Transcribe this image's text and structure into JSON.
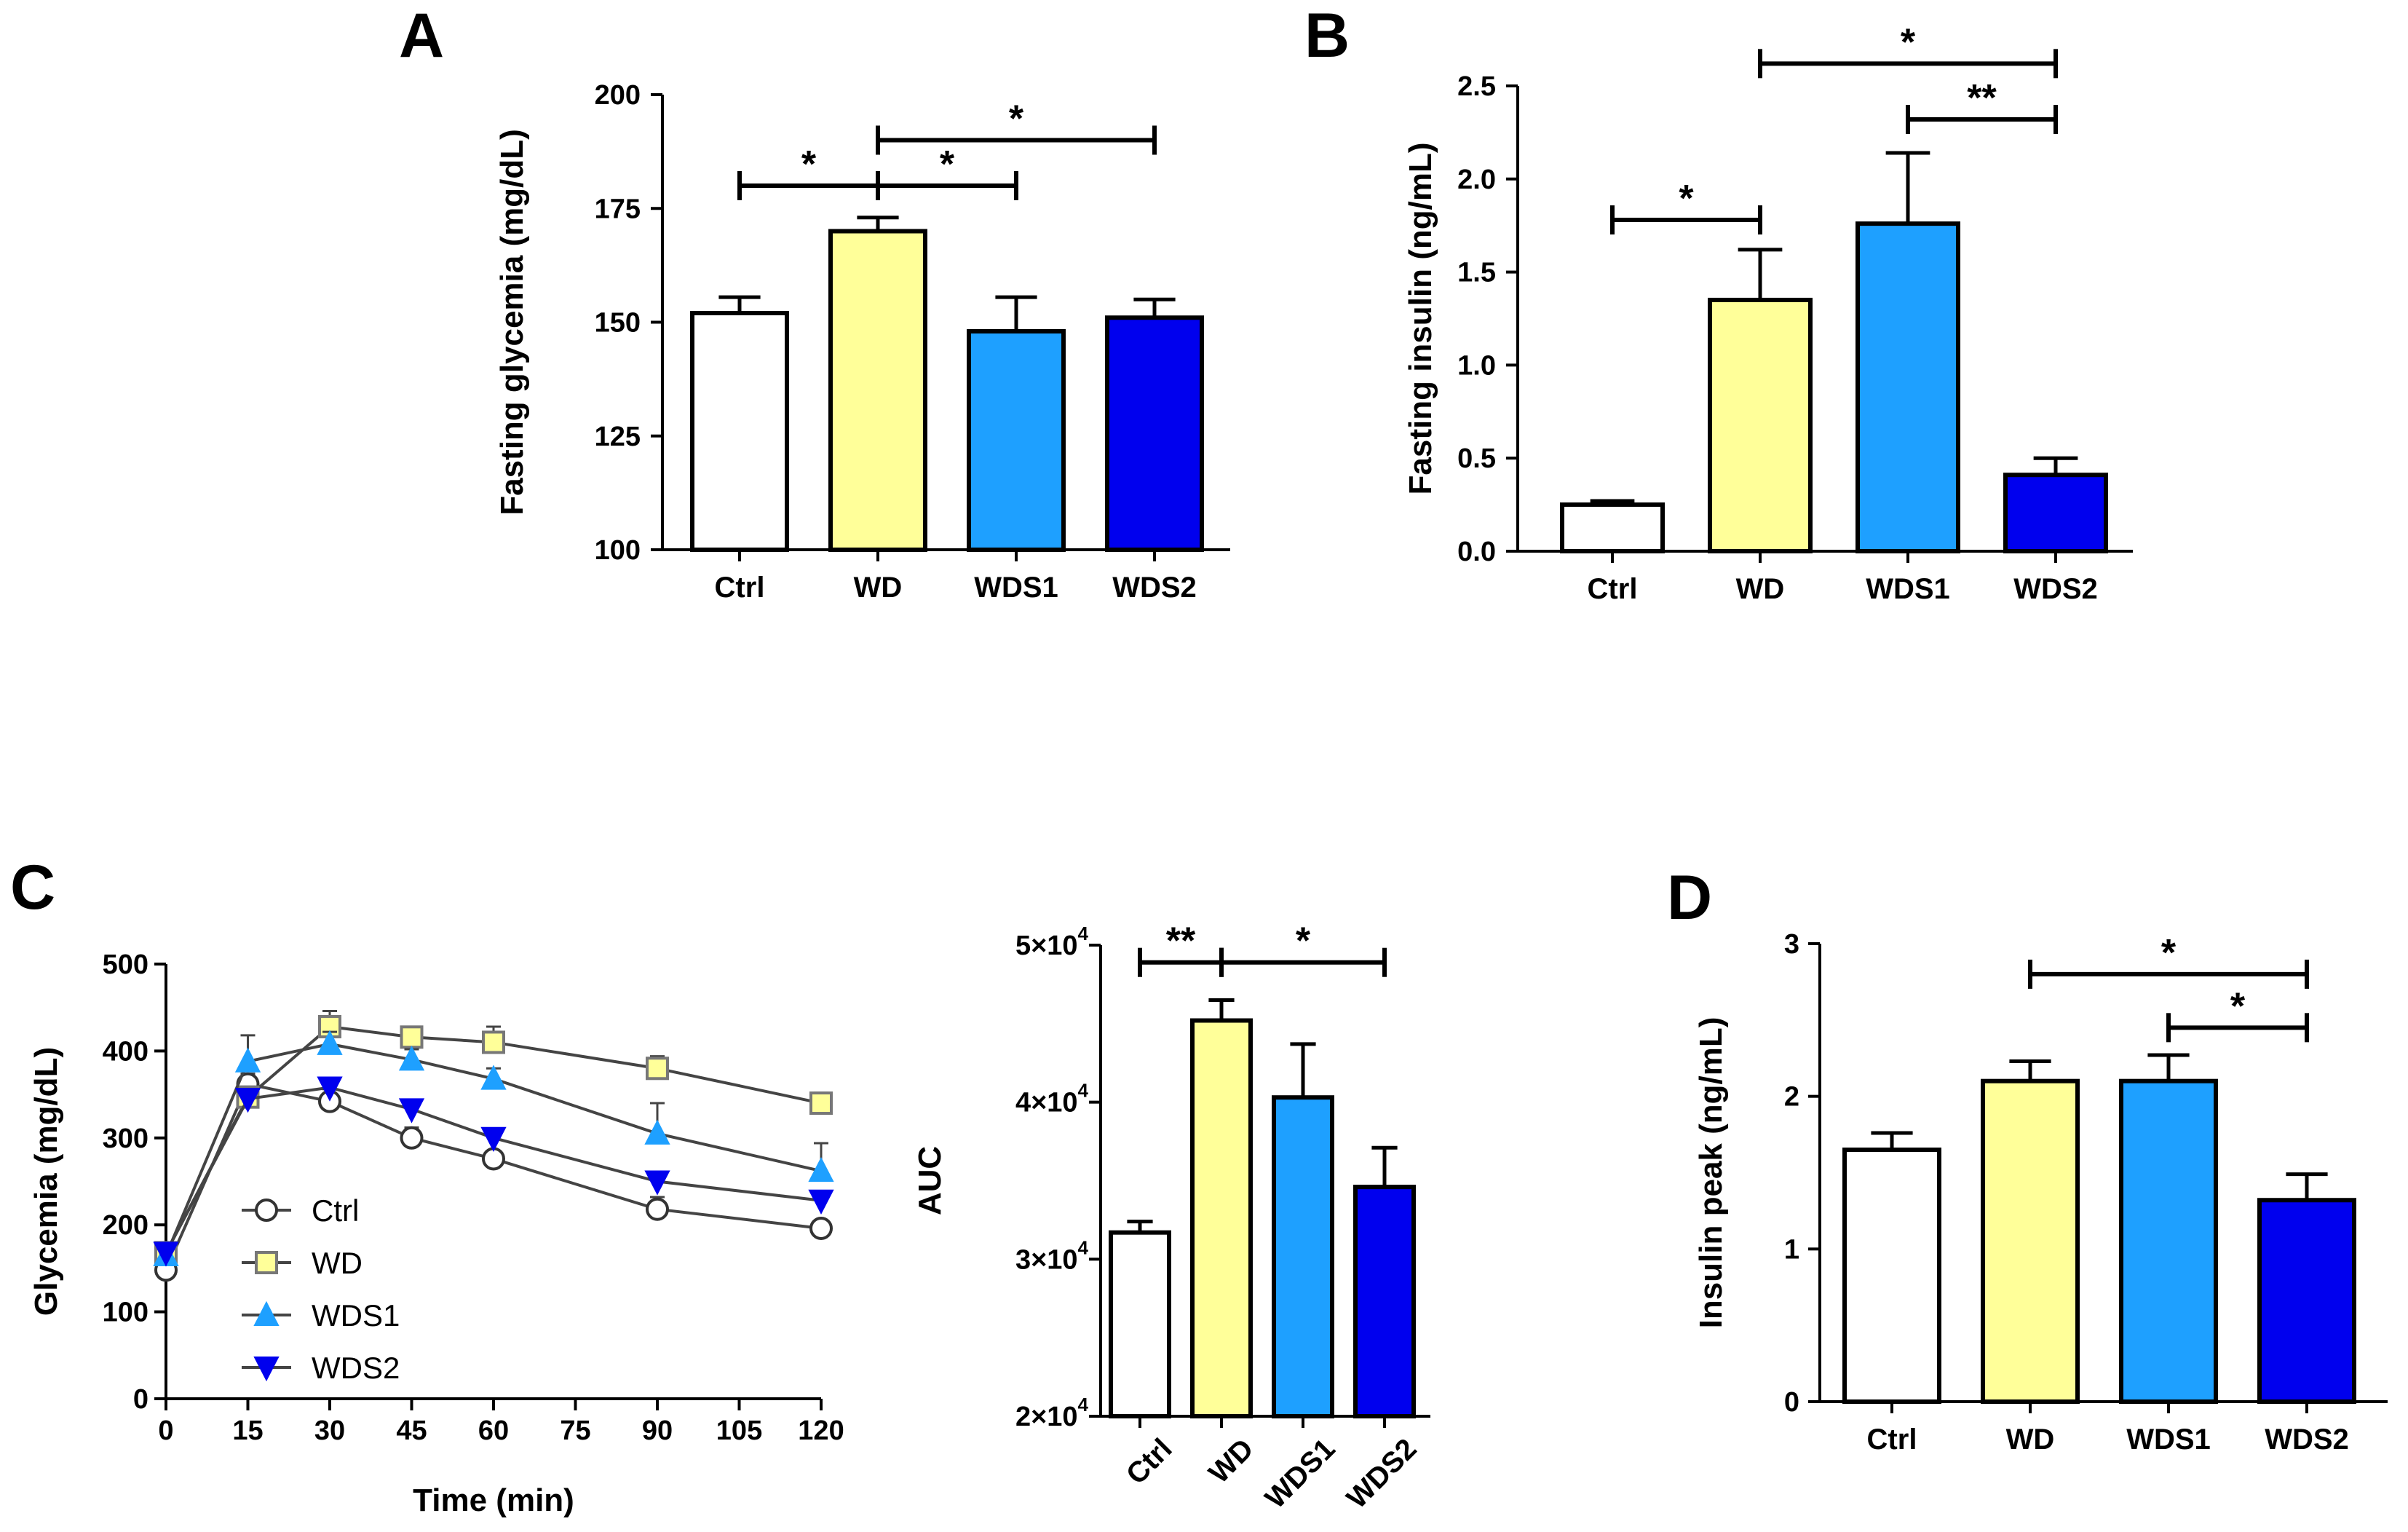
{
  "chart_data": [
    {
      "id": "A",
      "type": "bar",
      "panel_label": "A",
      "title": "",
      "ylabel": "Fasting glycemia (mg/dL)",
      "xlabel": "",
      "ylim": [
        100,
        200
      ],
      "yticks": [
        100,
        125,
        150,
        175,
        200
      ],
      "ytick_labels": [
        "100",
        "125",
        "150",
        "175",
        "200"
      ],
      "categories": [
        "Ctrl",
        "WD",
        "WDS1",
        "WDS2"
      ],
      "values": [
        152,
        170,
        148,
        151
      ],
      "errors": [
        3.5,
        3,
        7.5,
        4
      ],
      "colors": [
        "#ffffff",
        "#ffff99",
        "#1ea0ff",
        "#0000ee"
      ],
      "significance": [
        {
          "from": 0,
          "to": 1,
          "label": "*",
          "y": 180
        },
        {
          "from": 1,
          "to": 2,
          "label": "*",
          "y": 180
        },
        {
          "from": 1,
          "to": 3,
          "label": "*",
          "y": 190
        }
      ]
    },
    {
      "id": "B",
      "type": "bar",
      "panel_label": "B",
      "title": "",
      "ylabel": "Fasting insulin (ng/mL)",
      "xlabel": "",
      "ylim": [
        0,
        2.5
      ],
      "yticks": [
        0,
        0.5,
        1.0,
        1.5,
        2.0,
        2.5
      ],
      "ytick_labels": [
        "0.0",
        "0.5",
        "1.0",
        "1.5",
        "2.0",
        "2.5"
      ],
      "categories": [
        "Ctrl",
        "WD",
        "WDS1",
        "WDS2"
      ],
      "values": [
        0.25,
        1.35,
        1.76,
        0.41
      ],
      "errors": [
        0.02,
        0.27,
        0.38,
        0.09
      ],
      "colors": [
        "#ffffff",
        "#ffff99",
        "#1ea0ff",
        "#0000ee"
      ],
      "significance": [
        {
          "from": 0,
          "to": 1,
          "label": "*",
          "y": 1.78
        },
        {
          "from": 2,
          "to": 3,
          "label": "**",
          "y": 2.32
        },
        {
          "from": 1,
          "to": 3,
          "label": "*",
          "y": 2.62
        }
      ]
    },
    {
      "id": "C-line",
      "type": "line",
      "panel_label": "C",
      "title": "",
      "ylabel": "Glycemia (mg/dL)",
      "xlabel": "Time (min)",
      "xlim": [
        0,
        120
      ],
      "ylim": [
        0,
        500
      ],
      "xticks": [
        0,
        15,
        30,
        45,
        60,
        75,
        90,
        105,
        120
      ],
      "xtick_labels": [
        "0",
        "15",
        "30",
        "45",
        "60",
        "75",
        "90",
        "105",
        "120"
      ],
      "yticks": [
        0,
        100,
        200,
        300,
        400,
        500
      ],
      "ytick_labels": [
        "0",
        "100",
        "200",
        "300",
        "400",
        "500"
      ],
      "x": [
        0,
        15,
        30,
        45,
        60,
        90,
        120
      ],
      "legend_position": "lower-left",
      "series": [
        {
          "name": "Ctrl",
          "marker": "circle",
          "color": "#ffffff",
          "values": [
            148,
            362,
            342,
            300,
            276,
            218,
            196
          ],
          "errors": [
            8,
            12,
            14,
            12,
            8,
            14,
            6
          ]
        },
        {
          "name": "WD",
          "marker": "square",
          "color": "#ffff99",
          "values": [
            168,
            347,
            428,
            416,
            410,
            380,
            340
          ],
          "errors": [
            8,
            12,
            18,
            12,
            18,
            14,
            12
          ]
        },
        {
          "name": "WDS1",
          "marker": "triangle-up",
          "color": "#1ea0ff",
          "values": [
            165,
            388,
            408,
            390,
            368,
            305,
            262
          ],
          "errors": [
            8,
            30,
            14,
            12,
            12,
            35,
            32
          ]
        },
        {
          "name": "WDS2",
          "marker": "triangle-down",
          "color": "#0000ee",
          "values": [
            168,
            345,
            358,
            333,
            300,
            250,
            228
          ],
          "errors": [
            8,
            10,
            10,
            8,
            8,
            8,
            8
          ]
        }
      ]
    },
    {
      "id": "C-auc",
      "type": "bar",
      "panel_label": "",
      "title": "",
      "ylabel": "AUC",
      "xlabel": "",
      "ylim": [
        20000,
        50000
      ],
      "yticks": [
        20000,
        30000,
        40000,
        50000
      ],
      "ytick_labels": [
        "2×10",
        "3×10",
        "4×10",
        "5×10"
      ],
      "ytick_exponent": "4",
      "categories": [
        "Ctrl",
        "WD",
        "WDS1",
        "WDS2"
      ],
      "values": [
        31700,
        45200,
        40300,
        34600
      ],
      "errors": [
        700,
        1300,
        3400,
        2500
      ],
      "colors": [
        "#ffffff",
        "#ffff99",
        "#1ea0ff",
        "#0000ee"
      ],
      "significance": [
        {
          "from": 0,
          "to": 1,
          "label": "**",
          "y": 48900
        },
        {
          "from": 1,
          "to": 3,
          "label": "*",
          "y": 48900
        }
      ]
    },
    {
      "id": "D",
      "type": "bar",
      "panel_label": "D",
      "title": "",
      "ylabel": "Insulin peak (ng/mL)",
      "xlabel": "",
      "ylim": [
        0,
        3
      ],
      "yticks": [
        0,
        1,
        2,
        3
      ],
      "ytick_labels": [
        "0",
        "1",
        "2",
        "3"
      ],
      "categories": [
        "Ctrl",
        "WD",
        "WDS1",
        "WDS2"
      ],
      "values": [
        1.65,
        2.1,
        2.1,
        1.32
      ],
      "errors": [
        0.11,
        0.13,
        0.17,
        0.17
      ],
      "colors": [
        "#ffffff",
        "#ffff99",
        "#1ea0ff",
        "#0000ee"
      ],
      "significance": [
        {
          "from": 2,
          "to": 3,
          "label": "*",
          "y": 2.45
        },
        {
          "from": 1,
          "to": 3,
          "label": "*",
          "y": 2.8
        }
      ]
    }
  ]
}
